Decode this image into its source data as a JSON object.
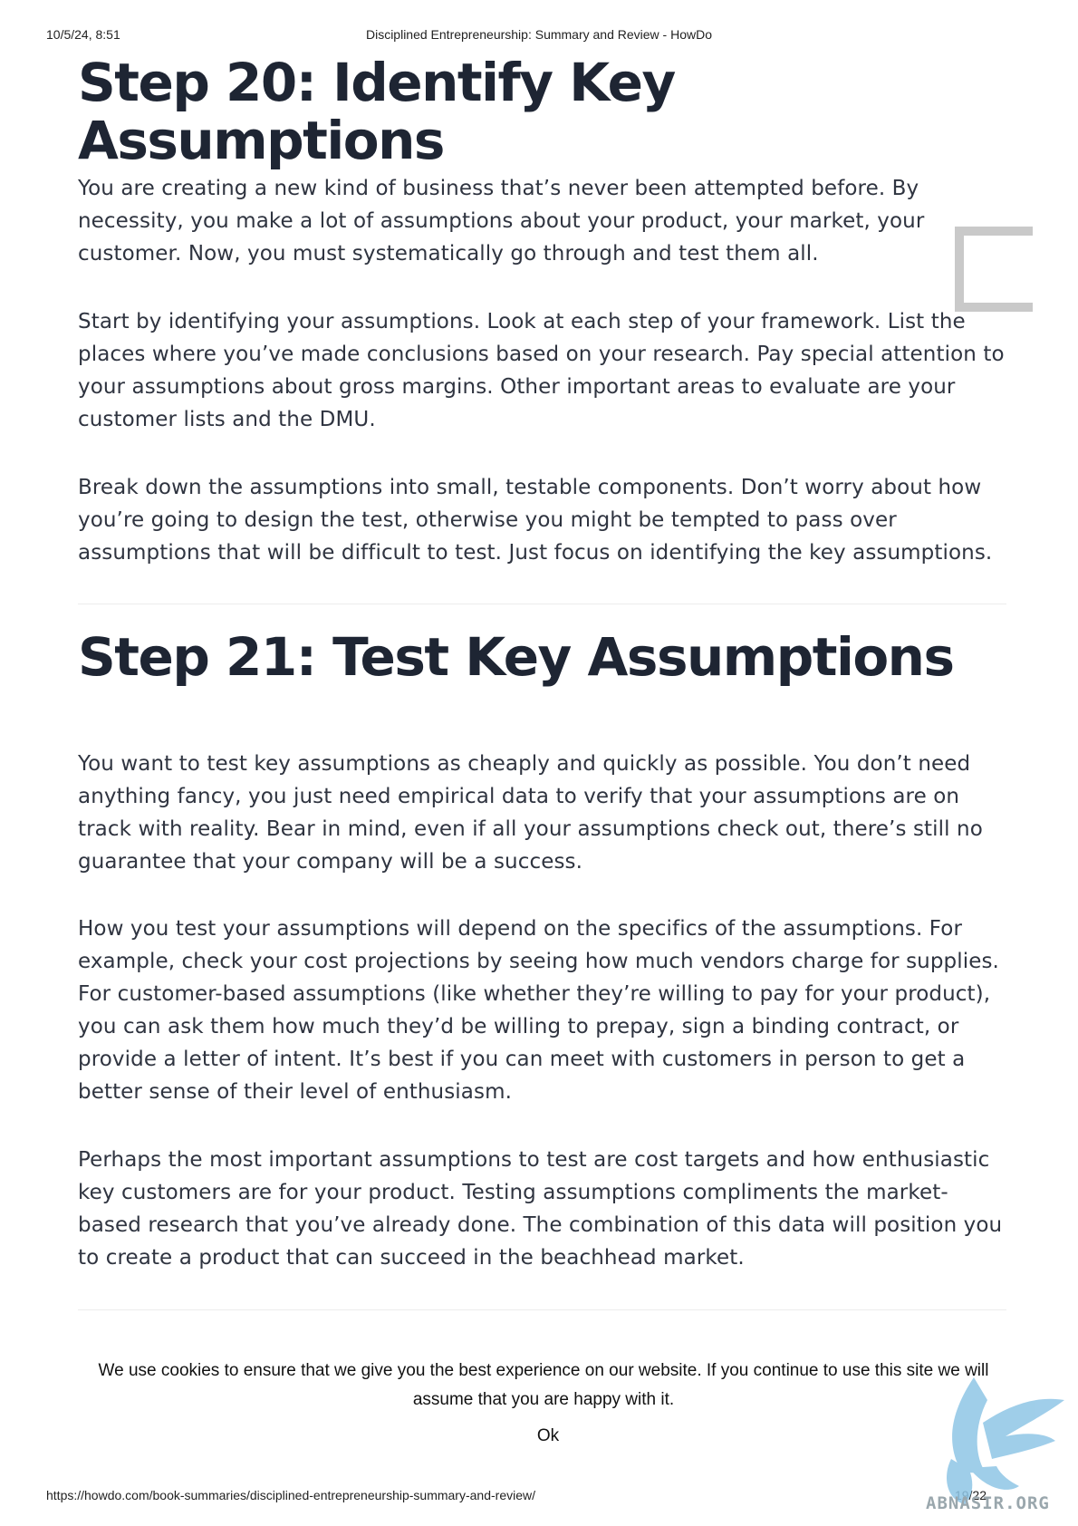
{
  "header": {
    "datetime": "10/5/24, 8:51",
    "page_title": "Disciplined Entrepreneurship: Summary and Review - HowDo"
  },
  "sections": [
    {
      "heading": "Step 20: Identify Key Assumptions",
      "paragraphs": [
        "You are creating a new kind of business that’s never been attempted before. By necessity, you make a lot of assumptions about your product, your market, your customer. Now, you must systematically go through and test them all.",
        "Start by identifying your assumptions. Look at each step of your framework. List the places where you’ve made conclusions based on your research. Pay special attention to your assumptions about gross margins. Other important areas to evaluate are your customer lists and the DMU.",
        "Break down the assumptions into small, testable components. Don’t worry about how you’re going to design the test, otherwise you might be tempted to pass over assumptions that will be difficult to test. Just focus on identifying the key assumptions."
      ]
    },
    {
      "heading": "Step 21: Test Key Assumptions",
      "paragraphs": [
        "You want to test key assumptions as cheaply and quickly as possible. You don’t need anything fancy, you just need empirical data to verify that your assumptions are on track with reality. Bear in mind, even if all your assumptions check out, there’s still no guarantee that your company will be a success.",
        "How you test your assumptions will depend on the specifics of the assumptions. For example, check your cost projections by seeing how much vendors charge for supplies. For customer-based assumptions (like whether they’re willing to pay for your product), you can ask them how much they’d be willing to prepay, sign a binding contract, or provide a letter of intent. It’s best if you can meet with customers in person to get a better sense of their level of enthusiasm.",
        "Perhaps the most important assumptions to test are cost targets and how enthusiastic key customers are for your product. Testing assumptions compliments the market-based research that you’ve already done. The combination of this data will position you to create a product that can succeed in the beachhead market."
      ]
    }
  ],
  "cookie_banner": {
    "message": "We use cookies to ensure that we give you the best experience on our website. If you continue to use this site we will assume that you are happy with it.",
    "ok_label": "Ok"
  },
  "footer": {
    "url": "https://howdo.com/book-summaries/disciplined-entrepreneurship-summary-and-review/",
    "page_number": "19/22"
  },
  "watermark": {
    "text": "ABNASIR.ORG",
    "icon": "griffin-logo"
  }
}
